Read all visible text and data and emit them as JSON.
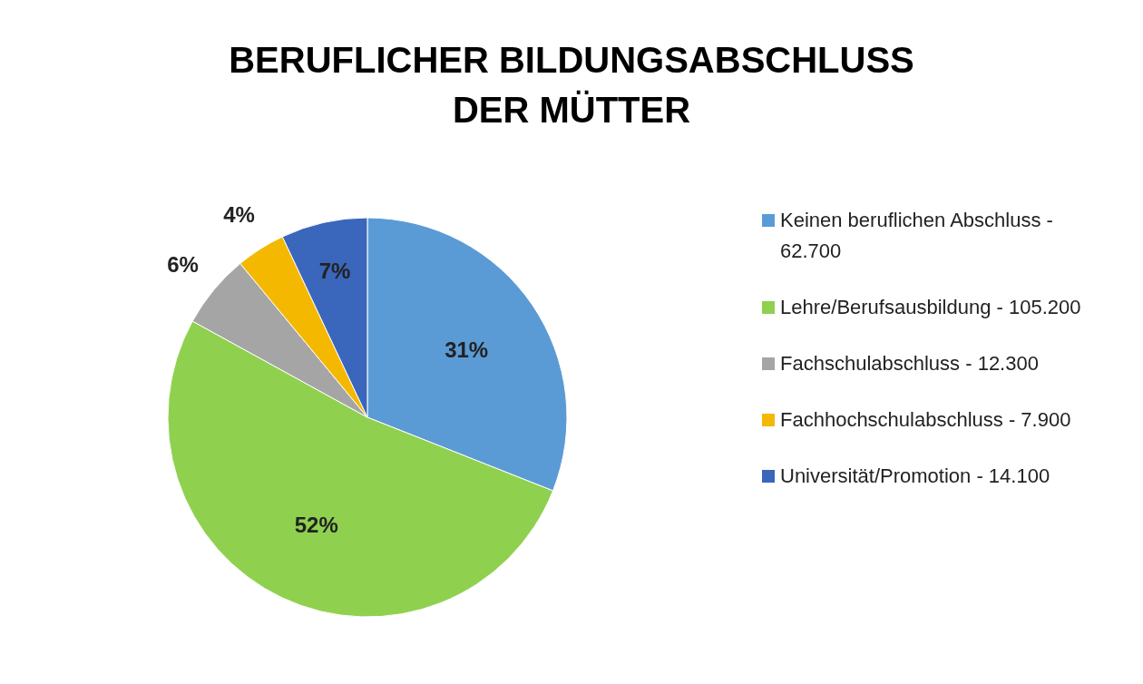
{
  "chart_data": {
    "type": "pie",
    "title": "BERUFLICHER BILDUNGSABSCHLUSS\nDER MÜTTER",
    "categories": [
      "Keinen beruflichen Abschluss - 62.700",
      "Lehre/Berufsausbildung - 105.200",
      "Fachschulabschluss - 12.300",
      "Fachhochschulabschluss - 7.900",
      "Universität/Promotion - 14.100"
    ],
    "values": [
      31,
      52,
      6,
      4,
      7
    ],
    "colors": [
      "#5b9bd5",
      "#8fd14f",
      "#a5a5a5",
      "#f5b800",
      "#3a66bb"
    ],
    "value_labels": [
      "31%",
      "52%",
      "6%",
      "4%",
      "7%"
    ],
    "legend": "right"
  }
}
